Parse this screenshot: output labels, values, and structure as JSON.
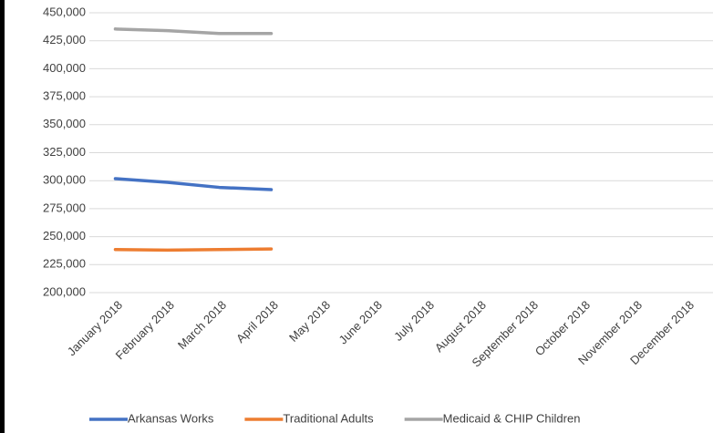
{
  "chart_data": {
    "type": "line",
    "categories": [
      "January 2018",
      "February 2018",
      "March 2018",
      "April 2018",
      "May 2018",
      "June 2018",
      "July 2018",
      "August 2018",
      "September 2018",
      "October 2018",
      "November 2018",
      "December 2018"
    ],
    "series": [
      {
        "name": "Arkansas Works",
        "color": "#4472c4",
        "values": [
          301800,
          298500,
          294000,
          292000,
          null,
          null,
          null,
          null,
          null,
          null,
          null,
          null
        ]
      },
      {
        "name": "Traditional Adults",
        "color": "#ed7d31",
        "values": [
          238500,
          238000,
          238500,
          239000,
          null,
          null,
          null,
          null,
          null,
          null,
          null,
          null
        ]
      },
      {
        "name": "Medicaid & CHIP Children",
        "color": "#a5a5a5",
        "values": [
          435500,
          434000,
          431500,
          431500,
          null,
          null,
          null,
          null,
          null,
          null,
          null,
          null
        ]
      }
    ],
    "ylim": [
      200000,
      450000
    ],
    "yticks": [
      {
        "value": 200000,
        "label": "200,000"
      },
      {
        "value": 225000,
        "label": "225,000"
      },
      {
        "value": 250000,
        "label": "250,000"
      },
      {
        "value": 275000,
        "label": "275,000"
      },
      {
        "value": 300000,
        "label": "300,000"
      },
      {
        "value": 325000,
        "label": "325,000"
      },
      {
        "value": 350000,
        "label": "350,000"
      },
      {
        "value": 375000,
        "label": "375,000"
      },
      {
        "value": 400000,
        "label": "400,000"
      },
      {
        "value": 425000,
        "label": "425,000"
      },
      {
        "value": 450000,
        "label": "450,000"
      }
    ],
    "grid": true,
    "legend": "bottom"
  }
}
